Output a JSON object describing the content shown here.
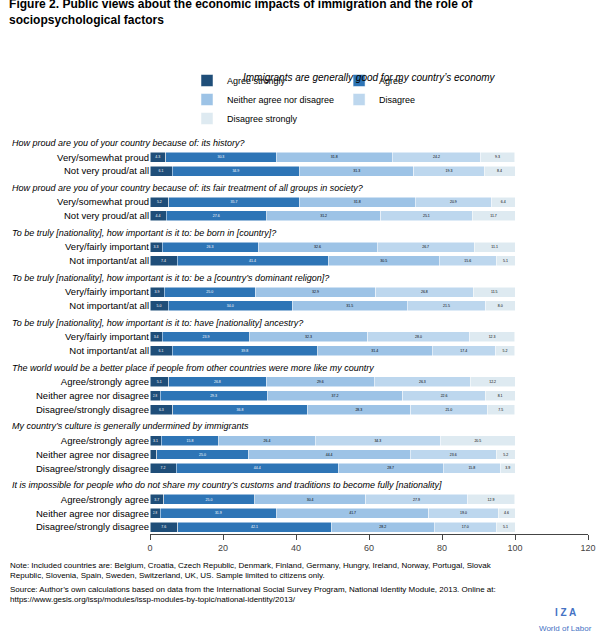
{
  "chart_data": {
    "type": "bar",
    "orientation": "horizontal",
    "stacked": true,
    "data_labels": true,
    "grid": false,
    "legend": "top",
    "title": "Figure 2. Public views about the economic impacts of immigration and the role of\nsociopsychological factors",
    "subtitle": "Immigrants are generally good for my country’s economy",
    "groups": [
      {
        "label": "How proud are you of your country because of: its history?",
        "categories": [
          "Very/somewhat proud",
          "Not very proud/at all"
        ]
      },
      {
        "label": "How proud are you of your country because of: its fair treatment of all groups in society?",
        "categories": [
          "Very/somewhat proud",
          "Not very proud/at all"
        ]
      },
      {
        "label": "To be truly [nationality], how important is it to: be born in [country]?",
        "categories": [
          "Very/fairly important",
          "Not important/at all"
        ]
      },
      {
        "label": "To be truly [nationality], how important is it to: be a [country’s dominant religon]?",
        "categories": [
          "Very/fairly important",
          "Not important/at all"
        ]
      },
      {
        "label": "To be truly [nationality], how important is it to: have [nationality] ancestry?",
        "categories": [
          "Very/fairly important",
          "Not important/at all"
        ]
      },
      {
        "label": "The world would be a better place if people from other countries were more like my country",
        "categories": [
          "Agree/strongly agree",
          "Neither agree nor disagree",
          "Disagree/strongly disagree"
        ]
      },
      {
        "label": "My country’s culture is generally undermined by immigrants",
        "categories": [
          "Agree/strongly agree",
          "Neither agree nor disagree",
          "Disagree/strongly disagree"
        ]
      },
      {
        "label": "It is impossible for people who do not share my country’s customs and traditions to become fully [nationality]",
        "categories": [
          "Agree/strongly agree",
          "Neither agree nor disagree",
          "Disagree/strongly disagree"
        ]
      }
    ],
    "series": [
      {
        "name": "Agree strongly",
        "color": "#1F4E79",
        "values": [
          4.3,
          6.1,
          5.2,
          4.4,
          3.3,
          7.4,
          3.9,
          5.0,
          3.4,
          6.1,
          5.1,
          2.8,
          6.3,
          3.1,
          1.9,
          7.2,
          3.7,
          2.8,
          7.6
        ],
        "value_labels": [
          "4.3",
          "6.1",
          "5.2",
          "4.4",
          "3.3",
          "7.4",
          "3.9",
          "5.0",
          "3.4",
          "6.1",
          "5.1",
          "2.8",
          "6.3",
          "3.1",
          null,
          "7.2",
          "3.7",
          "2.8",
          "7.6"
        ]
      },
      {
        "name": "Agree",
        "color": "#2E75B6",
        "values": [
          30.3,
          34.9,
          35.7,
          27.6,
          26.3,
          41.4,
          25.0,
          34.0,
          23.9,
          39.8,
          26.8,
          29.3,
          36.8,
          15.8,
          25.0,
          44.4,
          25.0,
          31.9,
          42.1
        ],
        "value_labels": [
          "30.3",
          "34.9",
          "35.7",
          "27.6",
          "26.3",
          "41.4",
          "25.0",
          "34.0",
          "23.9",
          "39.8",
          "26.8",
          "29.3",
          "36.8",
          "15.8",
          "25.0",
          "44.4",
          "25.0",
          "31.9",
          "42.1"
        ]
      },
      {
        "name": "Neither agree nor disagree",
        "color": "#9DC3E6",
        "values": [
          31.8,
          31.3,
          31.8,
          31.2,
          32.6,
          30.5,
          32.9,
          31.5,
          32.3,
          31.4,
          29.6,
          37.2,
          28.3,
          26.4,
          44.4,
          28.7,
          30.4,
          41.7,
          28.2
        ],
        "value_labels": [
          "31.8",
          "31.3",
          "31.8",
          "31.2",
          "32.6",
          "30.5",
          "32.9",
          "31.5",
          "32.3",
          "31.4",
          "29.6",
          "37.2",
          "28.3",
          "26.4",
          "44.4",
          "28.7",
          "30.4",
          "41.7",
          "28.2"
        ]
      },
      {
        "name": "Disagree",
        "color": "#BDD7EE",
        "values": [
          24.2,
          19.3,
          20.9,
          25.1,
          26.7,
          15.6,
          26.8,
          21.5,
          28.0,
          17.4,
          26.3,
          22.6,
          21.0,
          34.3,
          23.6,
          15.8,
          27.9,
          19.0,
          17.0
        ],
        "value_labels": [
          "24.2",
          "19.3",
          "20.9",
          "25.1",
          "26.7",
          "15.6",
          "26.8",
          "21.5",
          "28.0",
          "17.4",
          "26.3",
          "22.6",
          "21.0",
          "34.3",
          "23.6",
          "15.8",
          "27.9",
          "19.0",
          "17.0"
        ]
      },
      {
        "name": "Disagree strongly",
        "color": "#DEEAF1",
        "values": [
          9.3,
          8.4,
          6.4,
          11.7,
          11.1,
          5.1,
          11.5,
          8.0,
          12.3,
          5.2,
          12.2,
          8.1,
          7.5,
          20.5,
          5.2,
          3.9,
          12.9,
          4.6,
          5.1
        ],
        "value_labels": [
          "9.3",
          "8.4",
          "6.4",
          "11.7",
          "11.1",
          "5.1",
          "11.5",
          "8.0",
          "12.3",
          "5.2",
          "12.2",
          "8.1",
          "7.5",
          "20.5",
          "5.2",
          "3.9",
          "12.9",
          "4.6",
          "5.1"
        ]
      }
    ],
    "xlim": [
      0,
      120
    ],
    "xticks": [
      0,
      20,
      40,
      60,
      80,
      100,
      120
    ],
    "note": "Note: Included countries are: Belgium, Croatia, Czech Republic, Denmark, Finland, Germany, Hungry, Ireland, Norway, Portugal, Slovak\nRepublic, Slovenia, Spain, Sweden, Switzerland, UK, US. Sample limited to citizens only.",
    "source": "Source: Author’s own calculations based on data from the International Social Survey Program, National Identity Module, 2013. Online at:\nhttps://www.gesis.org/issp/modules/issp-modules-by-topic/national-identity/2013/",
    "annotations": [
      {
        "text": "I Z A",
        "color": "#4472C4"
      },
      {
        "text": "World of Labor",
        "color": "#4472C4"
      }
    ]
  }
}
